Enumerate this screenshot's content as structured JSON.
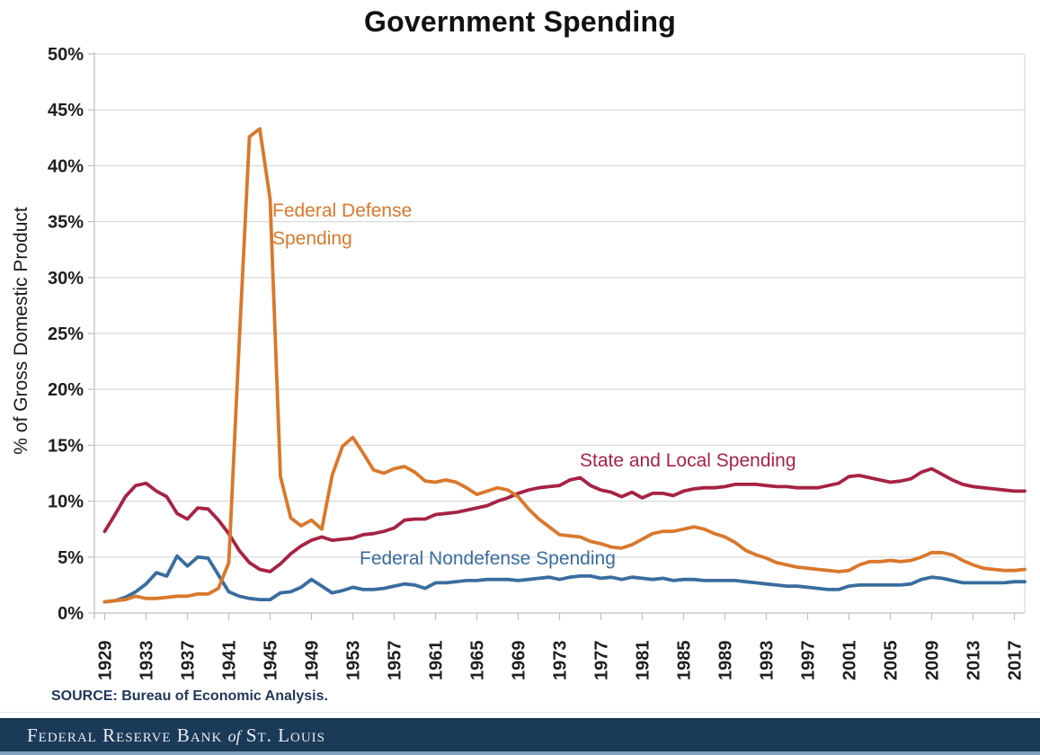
{
  "title": "Government Spending",
  "y_axis_title": "% of Gross Domestic Product",
  "source_note": "SOURCE: Bureau of Economic Analysis.",
  "footer": {
    "part1": "Federal Reserve Bank",
    "part2": "of",
    "part3": "St. Louis"
  },
  "series_labels": {
    "defense_line1": "Federal Defense",
    "defense_line2": "Spending",
    "state_local": "State and Local Spending",
    "nondefense": "Federal Nondefense Spending"
  },
  "colors": {
    "defense": "#D9782C",
    "state_local": "#A62344",
    "nondefense": "#3A6D9E",
    "grid": "#D9D9D9",
    "axis": "#BFBFBF",
    "tick_text": "#1F1F1F",
    "source_text": "#1F3757",
    "footer_bg": "#1B3A58",
    "footer_strip": "#7E9DBF"
  },
  "chart_data": {
    "type": "line",
    "title": "Government Spending",
    "xlabel": "",
    "ylabel": "% of Gross Domestic Product",
    "ylim": [
      0,
      50
    ],
    "grid": true,
    "legend_position": "inline-labels",
    "x_start": 1929,
    "x_end": 2018,
    "x_step": 1,
    "x_tick_years": [
      1929,
      1933,
      1937,
      1941,
      1945,
      1949,
      1953,
      1957,
      1961,
      1965,
      1969,
      1973,
      1977,
      1981,
      1985,
      1989,
      1993,
      1997,
      2001,
      2005,
      2009,
      2013,
      2017
    ],
    "y_tick_values": [
      0,
      5,
      10,
      15,
      20,
      25,
      30,
      35,
      40,
      45,
      50
    ],
    "y_tick_suffix": "%",
    "series": [
      {
        "key": "nondefense",
        "name": "Federal Nondefense Spending",
        "color": "#3A6D9E",
        "values": [
          1.0,
          1.1,
          1.4,
          1.9,
          2.6,
          3.6,
          3.3,
          5.1,
          4.2,
          5.0,
          4.9,
          3.4,
          1.9,
          1.5,
          1.3,
          1.2,
          1.2,
          1.8,
          1.9,
          2.3,
          3.0,
          2.4,
          1.8,
          2.0,
          2.3,
          2.1,
          2.1,
          2.2,
          2.4,
          2.6,
          2.5,
          2.2,
          2.7,
          2.7,
          2.8,
          2.9,
          2.9,
          3.0,
          3.0,
          3.0,
          2.9,
          3.0,
          3.1,
          3.2,
          3.0,
          3.2,
          3.3,
          3.3,
          3.1,
          3.2,
          3.0,
          3.2,
          3.1,
          3.0,
          3.1,
          2.9,
          3.0,
          3.0,
          2.9,
          2.9,
          2.9,
          2.9,
          2.8,
          2.7,
          2.6,
          2.5,
          2.4,
          2.4,
          2.3,
          2.2,
          2.1,
          2.1,
          2.4,
          2.5,
          2.5,
          2.5,
          2.5,
          2.5,
          2.6,
          3.0,
          3.2,
          3.1,
          2.9,
          2.7,
          2.7,
          2.7,
          2.7,
          2.7,
          2.8,
          2.8
        ]
      },
      {
        "key": "state_local",
        "name": "State and Local Spending",
        "color": "#A62344",
        "values": [
          7.3,
          8.8,
          10.4,
          11.4,
          11.6,
          10.9,
          10.4,
          8.9,
          8.4,
          9.4,
          9.3,
          8.3,
          7.1,
          5.6,
          4.5,
          3.9,
          3.7,
          4.4,
          5.3,
          6.0,
          6.5,
          6.8,
          6.5,
          6.6,
          6.7,
          7.0,
          7.1,
          7.3,
          7.6,
          8.3,
          8.4,
          8.4,
          8.8,
          8.9,
          9.0,
          9.2,
          9.4,
          9.6,
          10.0,
          10.3,
          10.7,
          11.0,
          11.2,
          11.3,
          11.4,
          11.9,
          12.1,
          11.4,
          11.0,
          10.8,
          10.4,
          10.8,
          10.3,
          10.7,
          10.7,
          10.5,
          10.9,
          11.1,
          11.2,
          11.2,
          11.3,
          11.5,
          11.5,
          11.5,
          11.4,
          11.3,
          11.3,
          11.2,
          11.2,
          11.2,
          11.4,
          11.6,
          12.2,
          12.3,
          12.1,
          11.9,
          11.7,
          11.8,
          12.0,
          12.6,
          12.9,
          12.4,
          11.9,
          11.5,
          11.3,
          11.2,
          11.1,
          11.0,
          10.9,
          10.9
        ]
      },
      {
        "key": "defense",
        "name": "Federal Defense Spending",
        "color": "#D9782C",
        "values": [
          1.0,
          1.1,
          1.2,
          1.5,
          1.3,
          1.3,
          1.4,
          1.5,
          1.5,
          1.7,
          1.7,
          2.2,
          4.5,
          24.0,
          42.6,
          43.3,
          37.0,
          12.2,
          8.5,
          7.8,
          8.3,
          7.5,
          12.3,
          14.9,
          15.7,
          14.3,
          12.8,
          12.5,
          12.9,
          13.1,
          12.6,
          11.8,
          11.7,
          11.9,
          11.7,
          11.2,
          10.6,
          10.9,
          11.2,
          11.0,
          10.4,
          9.3,
          8.4,
          7.7,
          7.0,
          6.9,
          6.8,
          6.4,
          6.2,
          5.9,
          5.8,
          6.1,
          6.6,
          7.1,
          7.3,
          7.3,
          7.5,
          7.7,
          7.5,
          7.1,
          6.8,
          6.3,
          5.6,
          5.2,
          4.9,
          4.5,
          4.3,
          4.1,
          4.0,
          3.9,
          3.8,
          3.7,
          3.8,
          4.3,
          4.6,
          4.6,
          4.7,
          4.6,
          4.7,
          5.0,
          5.4,
          5.4,
          5.2,
          4.7,
          4.3,
          4.0,
          3.9,
          3.8,
          3.8,
          3.9
        ]
      }
    ]
  }
}
